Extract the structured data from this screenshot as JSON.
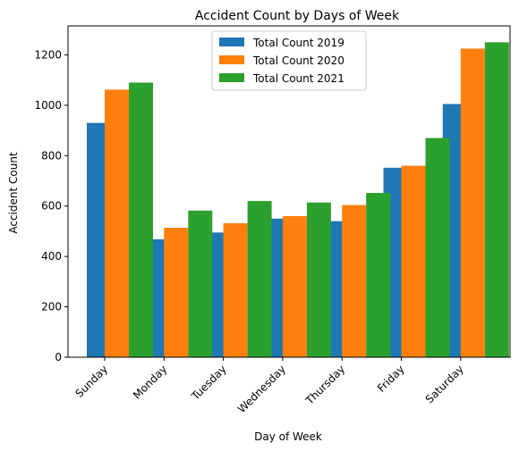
{
  "chart_data": {
    "type": "bar",
    "title": "Accident Count by Days of Week",
    "xlabel": "Day of Week",
    "ylabel": "Accident Count",
    "categories": [
      "Sunday",
      "Monday",
      "Tuesday",
      "Wednesday",
      "Thursday",
      "Friday",
      "Saturday"
    ],
    "series": [
      {
        "name": "Total Count 2019",
        "color": "#1f77b4",
        "values": [
          930,
          468,
          495,
          550,
          540,
          752,
          1005
        ]
      },
      {
        "name": "Total Count 2020",
        "color": "#ff7f0e",
        "values": [
          1062,
          514,
          532,
          560,
          604,
          760,
          1225
        ]
      },
      {
        "name": "Total Count 2021",
        "color": "#2ca02c",
        "values": [
          1090,
          582,
          620,
          614,
          652,
          870,
          1250
        ]
      }
    ],
    "ylim": [
      0,
      1315
    ],
    "yticks": [
      "0",
      "200",
      "400",
      "600",
      "800",
      "1000",
      "1200"
    ],
    "legend_position": "top-center",
    "grid": false
  }
}
